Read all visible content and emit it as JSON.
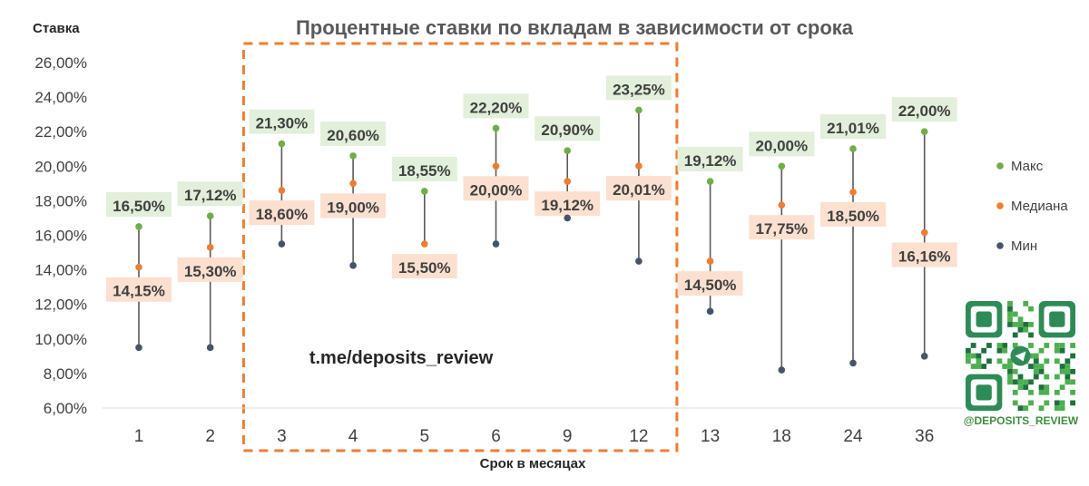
{
  "chart_data": {
    "type": "scatter",
    "title": "Процентные ставки по вкладам в зависимости от срока",
    "ylabel": "Ставка",
    "xlabel": "Срок в месяцах",
    "categories": [
      "1",
      "2",
      "3",
      "4",
      "5",
      "6",
      "9",
      "12",
      "13",
      "18",
      "24",
      "36"
    ],
    "yticks": [
      "26,00%",
      "24,00%",
      "22,00%",
      "20,00%",
      "18,00%",
      "16,00%",
      "14,00%",
      "12,00%",
      "10,00%",
      "8,00%",
      "6,00%"
    ],
    "ylim": [
      6,
      26
    ],
    "series": [
      {
        "name": "Макс",
        "color": "#70ad47",
        "values": [
          16.5,
          17.12,
          21.3,
          20.6,
          18.55,
          22.2,
          20.9,
          23.25,
          19.12,
          20.0,
          21.01,
          22.0
        ],
        "labels": [
          "16,50%",
          "17,12%",
          "21,30%",
          "20,60%",
          "18,55%",
          "22,20%",
          "20,90%",
          "23,25%",
          "19,12%",
          "20,00%",
          "21,01%",
          "22,00%"
        ]
      },
      {
        "name": "Медиана",
        "color": "#ed7d31",
        "values": [
          14.15,
          15.3,
          18.6,
          19.0,
          15.5,
          20.0,
          19.12,
          20.01,
          14.5,
          17.75,
          18.5,
          16.16
        ],
        "labels": [
          "14,15%",
          "15,30%",
          "18,60%",
          "19,00%",
          "15,50%",
          "20,00%",
          "19,12%",
          "20,01%",
          "14,50%",
          "17,75%",
          "18,50%",
          "16,16%"
        ]
      },
      {
        "name": "Мин",
        "color": "#44546a",
        "values": [
          9.5,
          9.5,
          15.5,
          14.25,
          null,
          15.5,
          17.0,
          14.5,
          11.6,
          8.2,
          8.6,
          9.0
        ]
      }
    ],
    "highlight_range": [
      "3",
      "12"
    ],
    "grid": false,
    "legend": "right"
  },
  "watermark": "t.me/deposits_review",
  "qr_handle": "@DEPOSITS_REVIEW",
  "colors": {
    "max_label_bg": "#e2efda",
    "median_label_bg": "#fbe0d0",
    "highlight": "#ed7d31",
    "whisker": "#595959"
  }
}
